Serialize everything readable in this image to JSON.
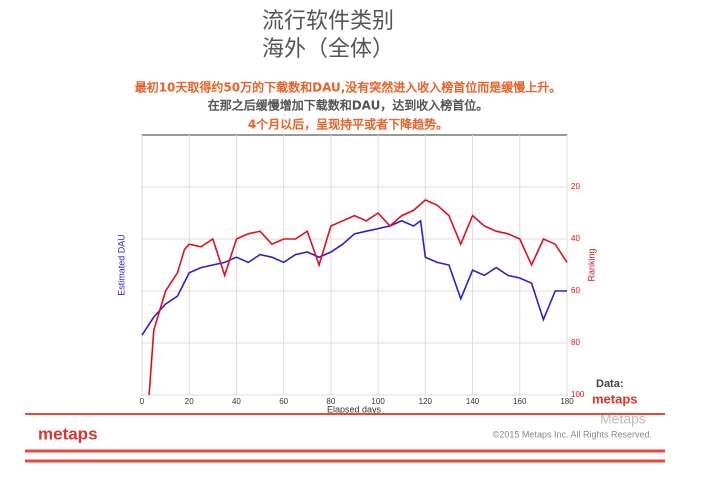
{
  "header": {
    "title": "流行软件类别",
    "subtitle": "海外（全体）"
  },
  "annotations": [
    "最初10天取得约50万的下载数和DAU,没有突然进入收入榜首位而是缓慢上升。",
    "在那之后缓慢增加下载数和DAU，达到收入榜首位。",
    "4个月以后，呈现持平或者下降趋势。"
  ],
  "chart_data": {
    "type": "line",
    "xlabel": "Elapsed days",
    "ylabel": "Estimated DAU",
    "y2label": "Ranking",
    "xlim": [
      0,
      180
    ],
    "xticks": [
      0,
      20,
      40,
      60,
      80,
      100,
      120,
      140,
      160,
      180
    ],
    "ylim": [
      0,
      100
    ],
    "y2lim": [
      100,
      0
    ],
    "y2ticks": [
      20,
      40,
      60,
      80,
      100
    ],
    "grid": true,
    "series": [
      {
        "name": "Estimated DAU",
        "color": "#2b1fd0",
        "x": [
          0,
          5,
          10,
          15,
          20,
          25,
          30,
          35,
          40,
          45,
          50,
          55,
          60,
          65,
          70,
          75,
          80,
          85,
          90,
          95,
          100,
          105,
          110,
          115,
          118,
          120,
          125,
          130,
          135,
          140,
          145,
          150,
          155,
          160,
          165,
          170,
          175,
          180
        ],
        "values": [
          23,
          30,
          35,
          38,
          47,
          49,
          50,
          51,
          53,
          51,
          54,
          53,
          51,
          54,
          55,
          53,
          55,
          58,
          62,
          63,
          64,
          65,
          67,
          65,
          67,
          53,
          51,
          50,
          37,
          48,
          46,
          49,
          46,
          45,
          43,
          29,
          40,
          40
        ]
      },
      {
        "name": "Ranking",
        "color": "#e0101e",
        "axis": "y2",
        "x": [
          3,
          5,
          10,
          15,
          18,
          20,
          25,
          30,
          35,
          40,
          45,
          50,
          55,
          60,
          65,
          70,
          75,
          80,
          85,
          90,
          95,
          100,
          105,
          110,
          115,
          120,
          125,
          130,
          135,
          140,
          145,
          150,
          155,
          160,
          165,
          170,
          175,
          180
        ],
        "values": [
          100,
          75,
          60,
          53,
          44,
          42,
          43,
          40,
          54,
          40,
          38,
          37,
          42,
          40,
          40,
          37,
          50,
          35,
          33,
          31,
          33,
          30,
          35,
          31,
          29,
          25,
          27,
          31,
          42,
          31,
          35,
          37,
          38,
          40,
          50,
          40,
          42,
          49
        ]
      }
    ]
  },
  "source": {
    "label": "Data:",
    "brand": "metaps"
  },
  "footer": {
    "brand": "metaps",
    "copyright": "©2015 Metaps Inc. All Rights Reserved.",
    "watermark": "Metaps"
  }
}
